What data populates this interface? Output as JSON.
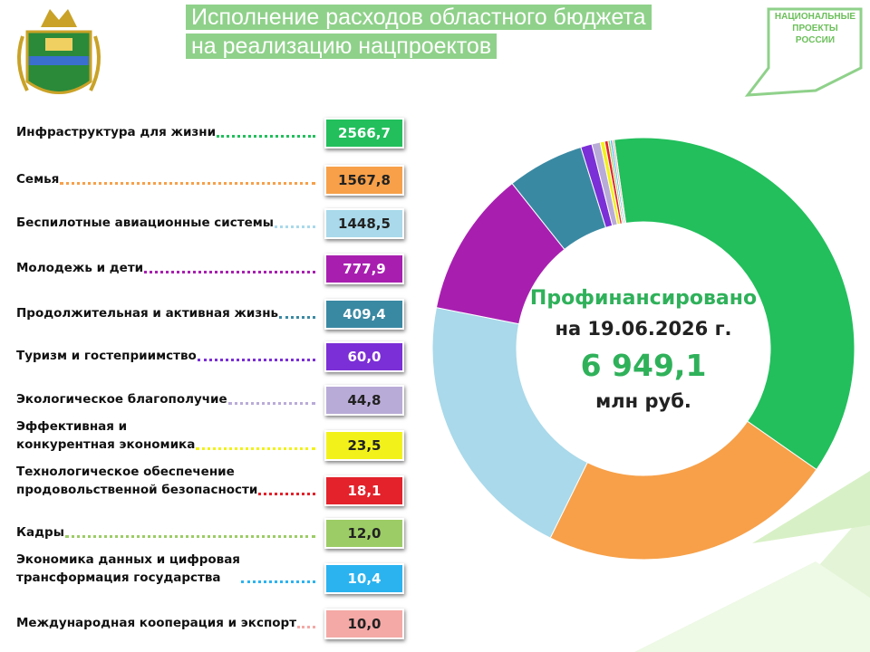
{
  "header": {
    "title_lines": [
      "Исполнение расходов областного бюджета",
      "на реализацию нацпроектов"
    ],
    "logo_lines": [
      "НАЦИОНАЛЬНЫЕ",
      "ПРОЕКТЫ",
      "РОССИИ"
    ]
  },
  "chart_data": {
    "type": "donut",
    "categories": [
      "Инфраструктура для жизни",
      "Семья",
      "Беспилотные авиационные системы",
      "Молодежь и дети",
      "Продолжительная и активная жизнь",
      "Туризм и гостеприимство",
      "Экологическое благополучие",
      "Эффективная и\nконкурентная экономика",
      "Технологическое обеспечение\nпродовольственной безопасности",
      "Кадры",
      "Экономика данных и цифровая\nтрансформация государства",
      "Международная кооперация и экспорт"
    ],
    "values": [
      2566.7,
      1567.8,
      1448.5,
      777.9,
      409.4,
      60.0,
      44.8,
      23.5,
      18.1,
      12.0,
      10.4,
      10.0
    ],
    "value_labels": [
      "2566,7",
      "1567,8",
      "1448,5",
      "777,9",
      "409,4",
      "60,0",
      "44,8",
      "23,5",
      "18,1",
      "12,0",
      "10,4",
      "10,0"
    ],
    "colors": [
      "#22bf5c",
      "#f7a049",
      "#a9d9ea",
      "#a81fb0",
      "#3a89a3",
      "#7b2fd6",
      "#b9abd8",
      "#f2f21a",
      "#e3222b",
      "#9ccc65",
      "#2bb3f0",
      "#f4a9a6"
    ],
    "center_text": {
      "title": "Профинансировано",
      "date": "на 19.06.2026 г.",
      "total": 6949.1,
      "total_label": "6 949,1",
      "unit": "млн руб."
    }
  }
}
